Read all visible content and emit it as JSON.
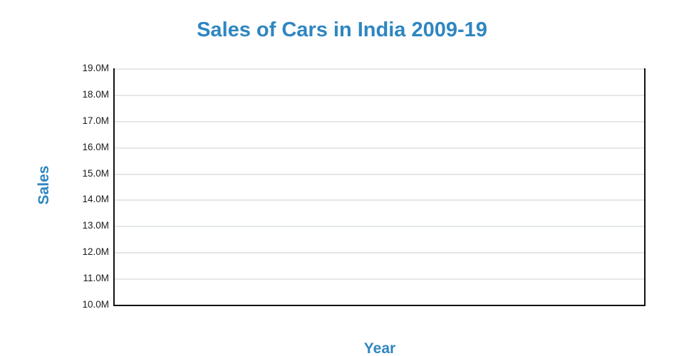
{
  "chart": {
    "title": "Sales of Cars in India 2009-19",
    "x_axis_label": "Year",
    "y_axis_label": "Sales",
    "y_ticks": [
      "19.0M",
      "18.0M",
      "17.0M",
      "16.0M",
      "15.0M",
      "14.0M",
      "13.0M",
      "12.0M",
      "11.0M",
      "10.0M"
    ],
    "colors": {
      "accent": "#2E86C1",
      "axis_line": "#111111",
      "gridline": "#e4e7e9",
      "tick_text": "#1c1c1c",
      "background": "#ffffff"
    }
  },
  "chart_data": {
    "type": "line",
    "title": "Sales of Cars in India 2009-19",
    "xlabel": "Year",
    "ylabel": "Sales",
    "ylim": [
      10000000,
      19000000
    ],
    "y_tick_labels": [
      "10.0M",
      "11.0M",
      "12.0M",
      "13.0M",
      "14.0M",
      "15.0M",
      "16.0M",
      "17.0M",
      "18.0M",
      "19.0M"
    ],
    "x_tick_labels": [],
    "series": [],
    "grid": true,
    "legend": false
  }
}
